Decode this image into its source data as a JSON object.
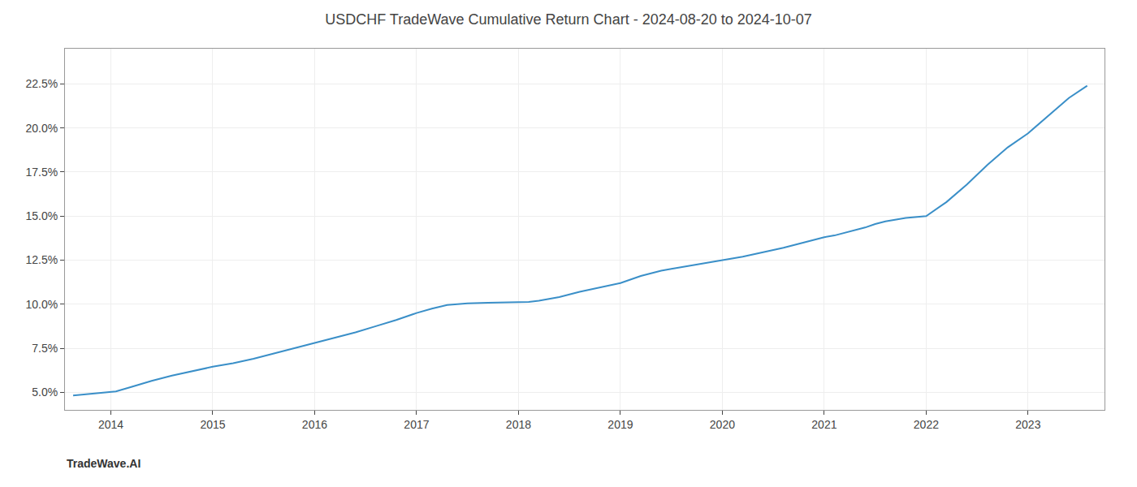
{
  "chart_data": {
    "type": "line",
    "title": "USDCHF TradeWave Cumulative Return Chart - 2024-08-20 to 2024-10-07",
    "annotations": [
      {
        "text": "TradeWave.AI"
      }
    ],
    "color": "#3a8fc8",
    "grid": true,
    "x": [
      2013.63,
      2014.05,
      2014.2,
      2014.4,
      2014.6,
      2014.8,
      2015.0,
      2015.2,
      2015.4,
      2015.6,
      2015.8,
      2016.0,
      2016.2,
      2016.4,
      2016.6,
      2016.8,
      2017.0,
      2017.15,
      2017.3,
      2017.5,
      2017.7,
      2017.9,
      2018.0,
      2018.1,
      2018.2,
      2018.4,
      2018.6,
      2018.8,
      2019.0,
      2019.2,
      2019.4,
      2019.5,
      2019.6,
      2019.8,
      2020.0,
      2020.2,
      2020.4,
      2020.6,
      2020.8,
      2021.0,
      2021.1,
      2021.2,
      2021.4,
      2021.5,
      2021.6,
      2021.8,
      2022.0,
      2022.2,
      2022.4,
      2022.6,
      2022.8,
      2023.0,
      2023.2,
      2023.4,
      2023.58
    ],
    "values": [
      4.82,
      5.05,
      5.3,
      5.65,
      5.95,
      6.2,
      6.45,
      6.65,
      6.9,
      7.2,
      7.5,
      7.8,
      8.1,
      8.4,
      8.75,
      9.1,
      9.5,
      9.75,
      9.95,
      10.05,
      10.08,
      10.1,
      10.12,
      10.13,
      10.2,
      10.4,
      10.7,
      10.95,
      11.2,
      11.6,
      11.9,
      12.0,
      12.1,
      12.3,
      12.5,
      12.7,
      12.95,
      13.2,
      13.5,
      13.8,
      13.9,
      14.05,
      14.35,
      14.55,
      14.7,
      14.9,
      15.0,
      15.8,
      16.8,
      17.9,
      18.9,
      19.7,
      20.7,
      21.7,
      22.4
    ],
    "xlim": [
      2013.55,
      2023.75
    ],
    "xticks": [
      2014,
      2015,
      2016,
      2017,
      2018,
      2019,
      2020,
      2021,
      2022,
      2023
    ],
    "ylim": [
      4.0,
      24.5
    ],
    "yticks": [
      {
        "value": 5.0,
        "label": "5.0%"
      },
      {
        "value": 7.5,
        "label": "7.5%"
      },
      {
        "value": 10.0,
        "label": "10.0%"
      },
      {
        "value": 12.5,
        "label": "12.5%"
      },
      {
        "value": 15.0,
        "label": "15.0%"
      },
      {
        "value": 17.5,
        "label": "17.5%"
      },
      {
        "value": 20.0,
        "label": "20.0%"
      },
      {
        "value": 22.5,
        "label": "22.5%"
      }
    ]
  }
}
